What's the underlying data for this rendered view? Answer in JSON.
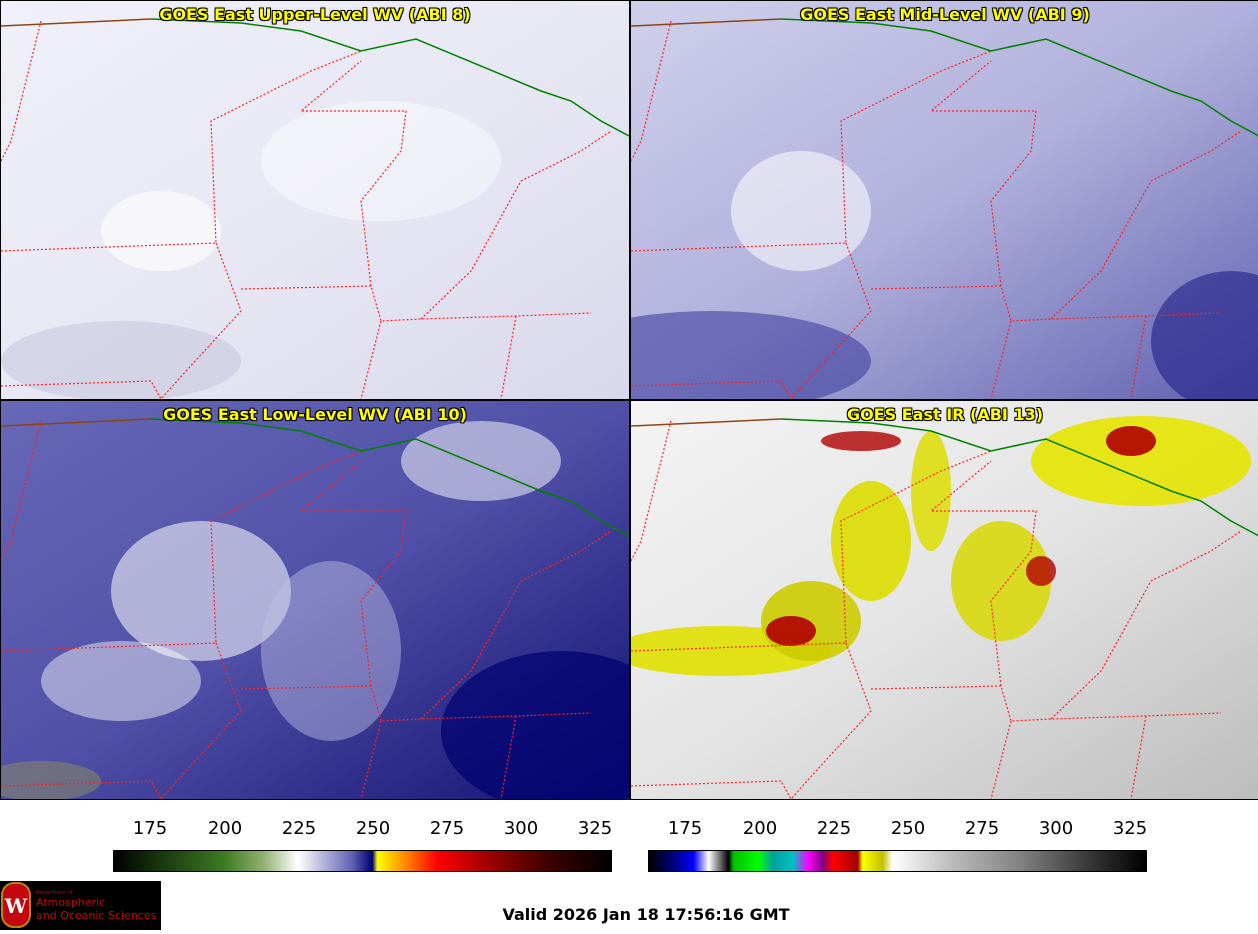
{
  "panels": [
    {
      "title": "GOES East Upper-Level WV (ABI 8)"
    },
    {
      "title": "GOES East Mid-Level WV (ABI 9)"
    },
    {
      "title": "GOES East Low-Level WV (ABI 10)"
    },
    {
      "title": "GOES East IR (ABI 13)"
    }
  ],
  "colorbar_wv": {
    "ticks": [
      "175",
      "200",
      "225",
      "250",
      "275",
      "300",
      "325"
    ]
  },
  "colorbar_ir": {
    "ticks": [
      "175",
      "200",
      "225",
      "250",
      "275",
      "300",
      "325"
    ]
  },
  "logo": {
    "line1": "Department of",
    "line2": "Atmospheric",
    "line3": "and Oceanic Sciences",
    "mark": "W"
  },
  "valid_time": "Valid 2026 Jan 18 17:56:16 GMT",
  "colors": {
    "title": "#ffff00",
    "state_lines": "#ff2020",
    "border": "#008000",
    "coast": "#8b4513"
  }
}
